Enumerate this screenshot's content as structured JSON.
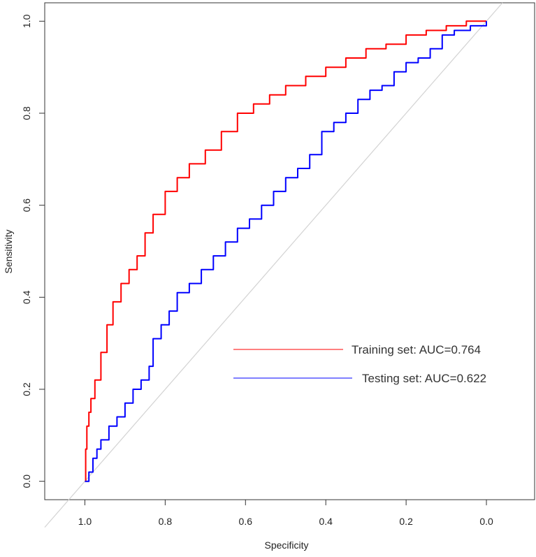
{
  "chart_data": {
    "type": "line",
    "title": "",
    "xlabel": "Specificity",
    "ylabel": "Sensitivity",
    "x_reversed": true,
    "xlim": [
      1.1,
      -0.12
    ],
    "ylim": [
      -0.04,
      1.04
    ],
    "x_ticks": [
      "1.0",
      "0.8",
      "0.6",
      "0.4",
      "0.2",
      "0.0"
    ],
    "x_tick_values": [
      1.0,
      0.8,
      0.6,
      0.4,
      0.2,
      0.0
    ],
    "y_ticks": [
      "0.0",
      "0.2",
      "0.4",
      "0.6",
      "0.8",
      "1.0"
    ],
    "y_tick_values": [
      0.0,
      0.2,
      0.4,
      0.6,
      0.8,
      1.0
    ],
    "reference_line": {
      "name": "chance-diagonal",
      "color": "#d3d3d3"
    },
    "legend_position": "center-right",
    "series": [
      {
        "name": "Training set: AUC=0.764",
        "color": "#ff0000",
        "specificity": [
          1.0,
          0.998,
          0.995,
          0.99,
          0.985,
          0.975,
          0.96,
          0.945,
          0.93,
          0.91,
          0.89,
          0.87,
          0.85,
          0.83,
          0.8,
          0.77,
          0.74,
          0.7,
          0.66,
          0.62,
          0.58,
          0.54,
          0.5,
          0.45,
          0.4,
          0.35,
          0.3,
          0.25,
          0.2,
          0.15,
          0.1,
          0.05,
          0.0
        ],
        "sensitivity": [
          0.0,
          0.07,
          0.12,
          0.15,
          0.18,
          0.22,
          0.28,
          0.34,
          0.39,
          0.43,
          0.46,
          0.49,
          0.54,
          0.58,
          0.63,
          0.66,
          0.69,
          0.72,
          0.76,
          0.8,
          0.82,
          0.84,
          0.86,
          0.88,
          0.9,
          0.92,
          0.94,
          0.95,
          0.97,
          0.98,
          0.99,
          1.0,
          1.0
        ]
      },
      {
        "name": "Testing set: AUC=0.622",
        "color": "#0000ff",
        "specificity": [
          1.0,
          0.99,
          0.98,
          0.97,
          0.96,
          0.94,
          0.92,
          0.9,
          0.88,
          0.86,
          0.84,
          0.83,
          0.83,
          0.81,
          0.79,
          0.77,
          0.74,
          0.71,
          0.68,
          0.65,
          0.62,
          0.59,
          0.56,
          0.53,
          0.5,
          0.47,
          0.44,
          0.41,
          0.38,
          0.35,
          0.32,
          0.29,
          0.26,
          0.23,
          0.2,
          0.17,
          0.14,
          0.11,
          0.08,
          0.04,
          0.0
        ],
        "sensitivity": [
          0.0,
          0.02,
          0.05,
          0.07,
          0.09,
          0.12,
          0.14,
          0.17,
          0.2,
          0.22,
          0.25,
          0.26,
          0.31,
          0.34,
          0.37,
          0.41,
          0.43,
          0.46,
          0.49,
          0.52,
          0.55,
          0.57,
          0.6,
          0.63,
          0.66,
          0.68,
          0.71,
          0.76,
          0.78,
          0.8,
          0.83,
          0.85,
          0.86,
          0.89,
          0.91,
          0.92,
          0.94,
          0.97,
          0.98,
          0.99,
          1.0
        ]
      }
    ]
  }
}
